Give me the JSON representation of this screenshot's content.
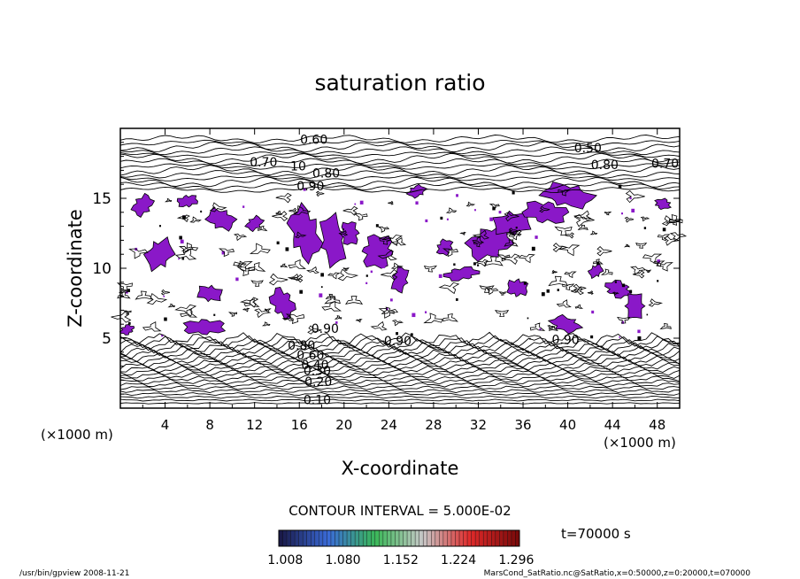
{
  "chart_data": {
    "type": "contour",
    "title": "saturation ratio",
    "xlabel": "X-coordinate",
    "ylabel": "Z-coordinate",
    "x_unit_label": "(×1000 m)",
    "z_unit_label": "(×1000 m)",
    "xlim": [
      0,
      50
    ],
    "ylim": [
      0,
      20
    ],
    "x_ticks": [
      4,
      8,
      12,
      16,
      20,
      24,
      28,
      32,
      36,
      40,
      44,
      48
    ],
    "y_ticks": [
      5,
      10,
      15
    ],
    "contour_interval_text": "CONTOUR INTERVAL = 5.000E-02",
    "contour_labels": [
      {
        "text": "0.10",
        "x": 17.6,
        "z": 0.6
      },
      {
        "text": "0.20",
        "x": 17.7,
        "z": 1.9
      },
      {
        "text": "0.30",
        "x": 17.6,
        "z": 2.7
      },
      {
        "text": "0.40",
        "x": 17.4,
        "z": 3.1
      },
      {
        "text": "0.60",
        "x": 17.0,
        "z": 3.8
      },
      {
        "text": "0.80",
        "x": 16.2,
        "z": 4.5
      },
      {
        "text": "0.90",
        "x": 18.3,
        "z": 5.7
      },
      {
        "text": "0.90",
        "x": 24.8,
        "z": 4.8
      },
      {
        "text": "0.90",
        "x": 39.8,
        "z": 4.9
      },
      {
        "text": "0.60",
        "x": 17.3,
        "z": 19.2
      },
      {
        "text": "0.50",
        "x": 41.8,
        "z": 18.6
      },
      {
        "text": "0.70",
        "x": 12.8,
        "z": 17.6
      },
      {
        "text": "0.70",
        "x": 48.7,
        "z": 17.5
      },
      {
        "text": "0.80",
        "x": 43.3,
        "z": 17.4
      },
      {
        "text": "0.80",
        "x": 18.4,
        "z": 16.8
      },
      {
        "text": "0.90",
        "x": 17.0,
        "z": 15.9
      },
      {
        "text": "10",
        "x": 15.9,
        "z": 17.3
      }
    ],
    "shaded_threshold": 1.0,
    "shaded_color": "#8a18c8",
    "colorbar": {
      "ticks": [
        "1.008",
        "1.080",
        "1.152",
        "1.224",
        "1.296"
      ],
      "range": [
        1.0,
        1.3
      ],
      "colors": [
        "#1a1a4a",
        "#3a6ad8",
        "#3ab858",
        "#c8c8c8",
        "#e02a2a",
        "#7a0a0a"
      ]
    },
    "time_label": "t=70000 s"
  },
  "footer": {
    "left": "/usr/bin/gpview   2008-11-21",
    "right": "MarsCond_SatRatio.nc@SatRatio,x=0:50000,z=0:20000,t=070000"
  }
}
